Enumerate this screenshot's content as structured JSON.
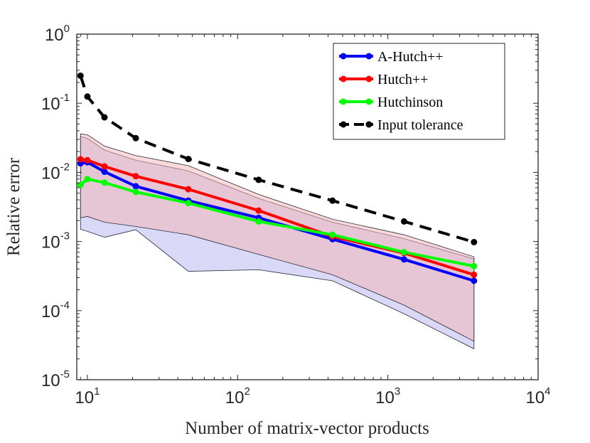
{
  "chart_data": {
    "type": "line",
    "xscale": "log",
    "yscale": "log",
    "xlim": [
      8.5,
      10000
    ],
    "ylim": [
      1e-05,
      1
    ],
    "xlabel": "Number of matrix-vector products",
    "ylabel": "Relative error",
    "xticks": [
      {
        "value": 10,
        "base": "10",
        "exp": "1"
      },
      {
        "value": 100,
        "base": "10",
        "exp": "2"
      },
      {
        "value": 1000,
        "base": "10",
        "exp": "3"
      },
      {
        "value": 10000,
        "base": "10",
        "exp": "4"
      }
    ],
    "yticks": [
      {
        "value": 1e-05,
        "base": "10",
        "exp": "-5"
      },
      {
        "value": 0.0001,
        "base": "10",
        "exp": "-4"
      },
      {
        "value": 0.001,
        "base": "10",
        "exp": "-3"
      },
      {
        "value": 0.01,
        "base": "10",
        "exp": "-2"
      },
      {
        "value": 0.1,
        "base": "10",
        "exp": "-1"
      },
      {
        "value": 1,
        "base": "10",
        "exp": "0"
      }
    ],
    "legend_position": "top-right",
    "series": [
      {
        "name": "A-Hutch++",
        "color": "#0000ff",
        "style": "solid",
        "x": [
          9,
          10,
          13,
          21,
          47,
          138,
          428,
          1282,
          3744
        ],
        "y": [
          0.0135,
          0.014,
          0.0102,
          0.0063,
          0.0039,
          0.0022,
          0.00108,
          0.00055,
          0.00027
        ]
      },
      {
        "name": "Hutch++",
        "color": "#ff0000",
        "style": "solid",
        "x": [
          9,
          10,
          13,
          21,
          47,
          138,
          428,
          1282,
          3744
        ],
        "y": [
          0.0155,
          0.015,
          0.0122,
          0.0088,
          0.0057,
          0.0028,
          0.00118,
          0.00068,
          0.00033
        ]
      },
      {
        "name": "Hutchinson",
        "color": "#00ff00",
        "style": "solid",
        "x": [
          9,
          10,
          13,
          21,
          47,
          138,
          428,
          1282,
          3744
        ],
        "y": [
          0.0066,
          0.008,
          0.0071,
          0.0052,
          0.0036,
          0.00195,
          0.00125,
          0.0007,
          0.00044
        ]
      },
      {
        "name": "Input tolerance",
        "color": "#000000",
        "style": "dashed",
        "x": [
          9,
          10,
          13,
          21,
          47,
          138,
          428,
          1282,
          3744
        ],
        "y": [
          0.25,
          0.125,
          0.0625,
          0.03125,
          0.0156,
          0.0078,
          0.0039,
          0.00195,
          0.00098
        ]
      }
    ],
    "bands": [
      {
        "name": "A-Hutch++ range",
        "color": "#b4b4f0",
        "x": [
          9,
          10,
          13,
          21,
          47,
          138,
          428,
          1282,
          3744
        ],
        "upper": [
          0.033,
          0.031,
          0.021,
          0.015,
          0.0105,
          0.0042,
          0.0019,
          0.0011,
          0.00056
        ],
        "lower": [
          0.0015,
          0.0014,
          0.00115,
          0.00148,
          0.00037,
          0.00039,
          0.00027,
          9e-05,
          2.8e-05
        ]
      },
      {
        "name": "Hutch++ range",
        "color": "#f4b4b4",
        "x": [
          9,
          10,
          13,
          21,
          47,
          138,
          428,
          1282,
          3744
        ],
        "upper": [
          0.036,
          0.035,
          0.024,
          0.0175,
          0.0125,
          0.0048,
          0.0021,
          0.00125,
          0.0006
        ],
        "lower": [
          0.0022,
          0.0023,
          0.0019,
          0.00165,
          0.00125,
          0.00065,
          0.00033,
          0.00012,
          3.6e-05
        ]
      }
    ]
  }
}
